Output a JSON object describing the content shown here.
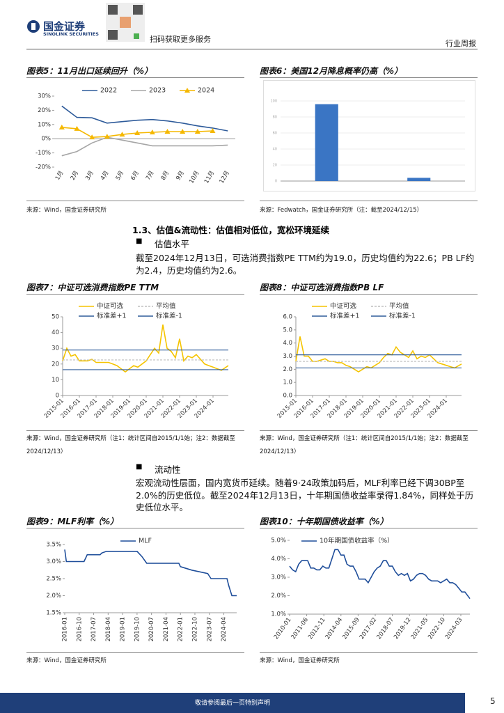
{
  "header": {
    "company": "国金证券",
    "company_en": "SINOLINK SECURITIES",
    "qr_caption": "扫码获取更多服务",
    "report_type": "行业周报"
  },
  "section": {
    "heading": "1.3、估值&流动性：估值相对低位，宽松环境延续",
    "sub1": "估值水平",
    "para1": "截至2024年12月13日，可选消费指数PE TTM约为19.0，历史均值约为22.6；PB LF约为2.4，历史均值约为2.6。",
    "sub2": "流动性",
    "para2": "宏观流动性层面，国内宽货币延续。随着9·24政策加码后，MLF利率已经下调30BP至2.0%的历史低位。截至2024年12月13日，十年期国债收益率录得1.84%，同样处于历史低位水平。"
  },
  "footer": {
    "disclaimer": "敬请参阅最后一页特别声明",
    "page": "5"
  },
  "chart_data": [
    {
      "type": "line",
      "title": "图表5：11月出口延续回升（%）",
      "source": "来源：Wind，国金证券研究所",
      "categories": [
        "1月",
        "2月",
        "3月",
        "4月",
        "5月",
        "6月",
        "7月",
        "8月",
        "9月",
        "10月",
        "11月",
        "12月"
      ],
      "ylim": [
        -20,
        30
      ],
      "yticks": [
        {
          "value": 30,
          "label": "30%"
        },
        {
          "value": 20,
          "label": "20%"
        },
        {
          "value": 10,
          "label": "10%"
        },
        {
          "value": 0,
          "label": "0%"
        },
        {
          "value": -10,
          "label": "-10%"
        },
        {
          "value": -20,
          "label": "-20%"
        }
      ],
      "series": [
        {
          "name": "2022",
          "color": "#2e5b9a",
          "values": [
            23,
            15,
            14.7,
            11,
            12,
            13,
            13.5,
            12.5,
            11,
            9,
            7.5,
            5.5
          ]
        },
        {
          "name": "2023",
          "color": "#a6a6a6",
          "values": [
            -12,
            -9,
            -3,
            1,
            -1,
            -3,
            -5,
            -5,
            -5,
            -5,
            -5,
            -4.5
          ]
        },
        {
          "name": "2024",
          "color": "#f5b800",
          "marker": "triangle",
          "values": [
            8,
            7,
            1,
            1.5,
            3,
            4,
            4.5,
            5,
            5,
            5,
            5.5,
            null
          ]
        }
      ]
    },
    {
      "type": "bar",
      "color": "#3a75c4",
      "values": [
        96,
        4
      ],
      "ylim": [
        0,
        100
      ],
      "yticks": [
        0,
        20,
        40,
        60,
        80,
        100
      ],
      "grid": true,
      "source": "来源：Fedwatch，国金证券研究所（注：截至2024/12/15）",
      "title": "图表6：美国12月降息概率仍高（%）"
    },
    {
      "type": "line",
      "title": "图表7：中证可选消费指数PE TTM",
      "source": "来源：Wind，国金证券研究所（注1：统计区间自2015/1/1始；注2：数据截至2024/12/13）",
      "ylim": [
        0,
        50
      ],
      "yticks": [
        0,
        10,
        20,
        30,
        40,
        50
      ],
      "xlim": [
        "2015-01",
        "2024-12"
      ],
      "xticks": [
        "2015-01",
        "2016-01",
        "2017-01",
        "2018-01",
        "2019-01",
        "2020-01",
        "2021-01",
        "2022-01",
        "2023-01",
        "2024-01"
      ],
      "x": [
        "2015-01",
        "2015-04",
        "2015-07",
        "2015-10",
        "2016-01",
        "2016-04",
        "2016-07",
        "2016-10",
        "2017-01",
        "2017-04",
        "2017-07",
        "2017-10",
        "2018-01",
        "2018-04",
        "2018-07",
        "2018-10",
        "2019-01",
        "2019-04",
        "2019-07",
        "2019-10",
        "2020-01",
        "2020-04",
        "2020-07",
        "2020-10",
        "2021-01",
        "2021-04",
        "2021-07",
        "2021-10",
        "2022-01",
        "2022-04",
        "2022-07",
        "2022-10",
        "2023-01",
        "2023-04",
        "2023-07",
        "2023-10",
        "2024-01",
        "2024-04",
        "2024-07",
        "2024-12"
      ],
      "series": [
        {
          "name": "中证可选",
          "color": "#f5c400",
          "values": [
            22,
            30,
            25,
            26,
            22,
            22,
            22,
            23,
            21,
            21,
            21,
            21,
            20,
            19,
            17,
            15,
            17,
            19,
            18,
            20,
            22,
            26,
            30,
            27,
            45,
            30,
            28,
            24,
            36,
            22,
            25,
            24,
            26,
            23,
            20,
            19,
            18,
            17,
            16,
            19
          ]
        },
        {
          "name": "平均值",
          "color": "#bfbfbf",
          "value": 22.6,
          "dash": true
        },
        {
          "name": "标准差+1",
          "color": "#2e5b9a",
          "value": 28.9
        },
        {
          "name": "标准差-1",
          "color": "#2e5b9a",
          "value": 16.4
        }
      ]
    },
    {
      "type": "line",
      "title": "图表8：中证可选消费指数PB LF",
      "source": "来源：Wind，国金证券研究所（注1：统计区间自2015/1/1始；注2：数据截至2024/12/13）",
      "ylim": [
        0,
        6
      ],
      "yticks": [
        {
          "value": 0,
          "label": "0.0"
        },
        {
          "value": 1,
          "label": "1.0"
        },
        {
          "value": 2,
          "label": "2.0"
        },
        {
          "value": 3,
          "label": "3.0"
        },
        {
          "value": 4,
          "label": "4.0"
        },
        {
          "value": 5,
          "label": "5.0"
        },
        {
          "value": 6,
          "label": "6.0"
        }
      ],
      "xlim": [
        "2015-01",
        "2024-12"
      ],
      "xticks": [
        "2015-01",
        "2016-01",
        "2017-01",
        "2018-01",
        "2019-01",
        "2020-01",
        "2021-01",
        "2022-01",
        "2023-01",
        "2024-01"
      ],
      "x": [
        "2015-01",
        "2015-04",
        "2015-07",
        "2015-10",
        "2016-01",
        "2016-04",
        "2016-07",
        "2016-10",
        "2017-01",
        "2017-04",
        "2017-07",
        "2017-10",
        "2018-01",
        "2018-04",
        "2018-07",
        "2018-10",
        "2019-01",
        "2019-04",
        "2019-07",
        "2019-10",
        "2020-01",
        "2020-04",
        "2020-07",
        "2020-10",
        "2021-01",
        "2021-04",
        "2021-07",
        "2021-10",
        "2022-01",
        "2022-04",
        "2022-07",
        "2022-10",
        "2023-01",
        "2023-04",
        "2023-07",
        "2023-10",
        "2024-01",
        "2024-04",
        "2024-07",
        "2024-12"
      ],
      "series": [
        {
          "name": "中证可选",
          "color": "#f5c400",
          "values": [
            2.6,
            4.5,
            3.0,
            3.0,
            2.6,
            2.6,
            2.7,
            2.8,
            2.6,
            2.6,
            2.5,
            2.5,
            2.3,
            2.2,
            2.0,
            1.8,
            2.0,
            2.2,
            2.1,
            2.3,
            2.5,
            2.9,
            3.2,
            3.1,
            3.7,
            3.3,
            3.1,
            2.9,
            3.4,
            2.8,
            3.0,
            2.9,
            3.1,
            2.8,
            2.5,
            2.4,
            2.3,
            2.2,
            2.1,
            2.4
          ]
        },
        {
          "name": "平均值",
          "color": "#bfbfbf",
          "value": 2.6,
          "dash": true
        },
        {
          "name": "标准差+1",
          "color": "#2e5b9a",
          "value": 3.1
        },
        {
          "name": "标准差-1",
          "color": "#2e5b9a",
          "value": 2.1
        }
      ]
    },
    {
      "type": "line",
      "title": "图表9：MLF利率（%）",
      "source": "来源：Wind，国金证券研究所",
      "ylim": [
        1.5,
        3.5
      ],
      "yticks": [
        {
          "value": 3.5,
          "label": "3.5%"
        },
        {
          "value": 3,
          "label": "3.0%"
        },
        {
          "value": 2.5,
          "label": "2.5%"
        },
        {
          "value": 2,
          "label": "2.0%"
        },
        {
          "value": 1.5,
          "label": "1.5%"
        }
      ],
      "xlim": [
        "2016-01",
        "2024-12"
      ],
      "xticks": [
        "2016-01",
        "2016-10",
        "2017-07",
        "2018-04",
        "2019-01",
        "2019-10",
        "2020-07",
        "2021-04",
        "2022-01",
        "2022-10",
        "2023-07",
        "2024-04"
      ],
      "x": [
        "2016-01",
        "2016-02",
        "2017-01",
        "2017-02",
        "2017-03",
        "2017-11",
        "2017-12",
        "2018-03",
        "2019-10",
        "2019-11",
        "2020-01",
        "2020-04",
        "2021-12",
        "2022-01",
        "2022-08",
        "2023-06",
        "2023-08",
        "2024-06",
        "2024-07",
        "2024-09",
        "2024-12"
      ],
      "series": [
        {
          "name": "MLF",
          "color": "#1f4e9a",
          "values": [
            3.35,
            3.0,
            3.0,
            3.1,
            3.2,
            3.2,
            3.25,
            3.3,
            3.3,
            3.25,
            3.15,
            2.95,
            2.95,
            2.85,
            2.75,
            2.65,
            2.5,
            2.5,
            2.3,
            2.0,
            2.0
          ]
        }
      ]
    },
    {
      "type": "line",
      "title": "图表10：十年期国债收益率（%）",
      "source": "来源：Wind，国金证券研究所",
      "ylim": [
        1,
        5
      ],
      "yticks": [
        {
          "value": 5,
          "label": "5.0%"
        },
        {
          "value": 4,
          "label": "4.0%"
        },
        {
          "value": 3,
          "label": "3.0%"
        },
        {
          "value": 2,
          "label": "2.0%"
        },
        {
          "value": 1,
          "label": "1.0%"
        }
      ],
      "xlim": [
        "2010-01",
        "2024-12"
      ],
      "xticks": [
        "2010-01",
        "2011-06",
        "2012-11",
        "2014-04",
        "2015-09",
        "2017-02",
        "2018-07",
        "2019-12",
        "2021-05",
        "2022-10",
        "2024-03"
      ],
      "x": [
        "2010-01",
        "2010-04",
        "2010-07",
        "2010-10",
        "2011-01",
        "2011-04",
        "2011-07",
        "2011-10",
        "2012-01",
        "2012-04",
        "2012-07",
        "2012-10",
        "2013-01",
        "2013-04",
        "2013-07",
        "2013-10",
        "2014-01",
        "2014-04",
        "2014-07",
        "2014-10",
        "2015-01",
        "2015-04",
        "2015-07",
        "2015-10",
        "2016-01",
        "2016-04",
        "2016-07",
        "2016-10",
        "2017-01",
        "2017-04",
        "2017-07",
        "2017-10",
        "2018-01",
        "2018-04",
        "2018-07",
        "2018-10",
        "2019-01",
        "2019-04",
        "2019-07",
        "2019-10",
        "2020-01",
        "2020-04",
        "2020-07",
        "2020-10",
        "2021-01",
        "2021-04",
        "2021-07",
        "2021-10",
        "2022-01",
        "2022-04",
        "2022-07",
        "2022-10",
        "2023-01",
        "2023-04",
        "2023-07",
        "2023-10",
        "2024-01",
        "2024-04",
        "2024-07",
        "2024-12"
      ],
      "series": [
        {
          "name": "10年期国债收益率（%）",
          "color": "#1f4e9a",
          "values": [
            3.6,
            3.4,
            3.3,
            3.7,
            3.9,
            3.9,
            3.9,
            3.5,
            3.5,
            3.4,
            3.4,
            3.6,
            3.5,
            3.5,
            4.0,
            4.5,
            4.5,
            4.2,
            4.2,
            3.7,
            3.6,
            3.6,
            3.3,
            2.9,
            2.9,
            2.9,
            2.7,
            3.0,
            3.3,
            3.5,
            3.6,
            3.9,
            3.9,
            3.6,
            3.6,
            3.3,
            3.1,
            3.2,
            3.1,
            3.2,
            2.8,
            2.9,
            3.1,
            3.2,
            3.2,
            3.1,
            2.9,
            2.8,
            2.8,
            2.8,
            2.7,
            2.8,
            2.9,
            2.7,
            2.7,
            2.6,
            2.4,
            2.2,
            2.2,
            1.84
          ]
        }
      ]
    }
  ]
}
